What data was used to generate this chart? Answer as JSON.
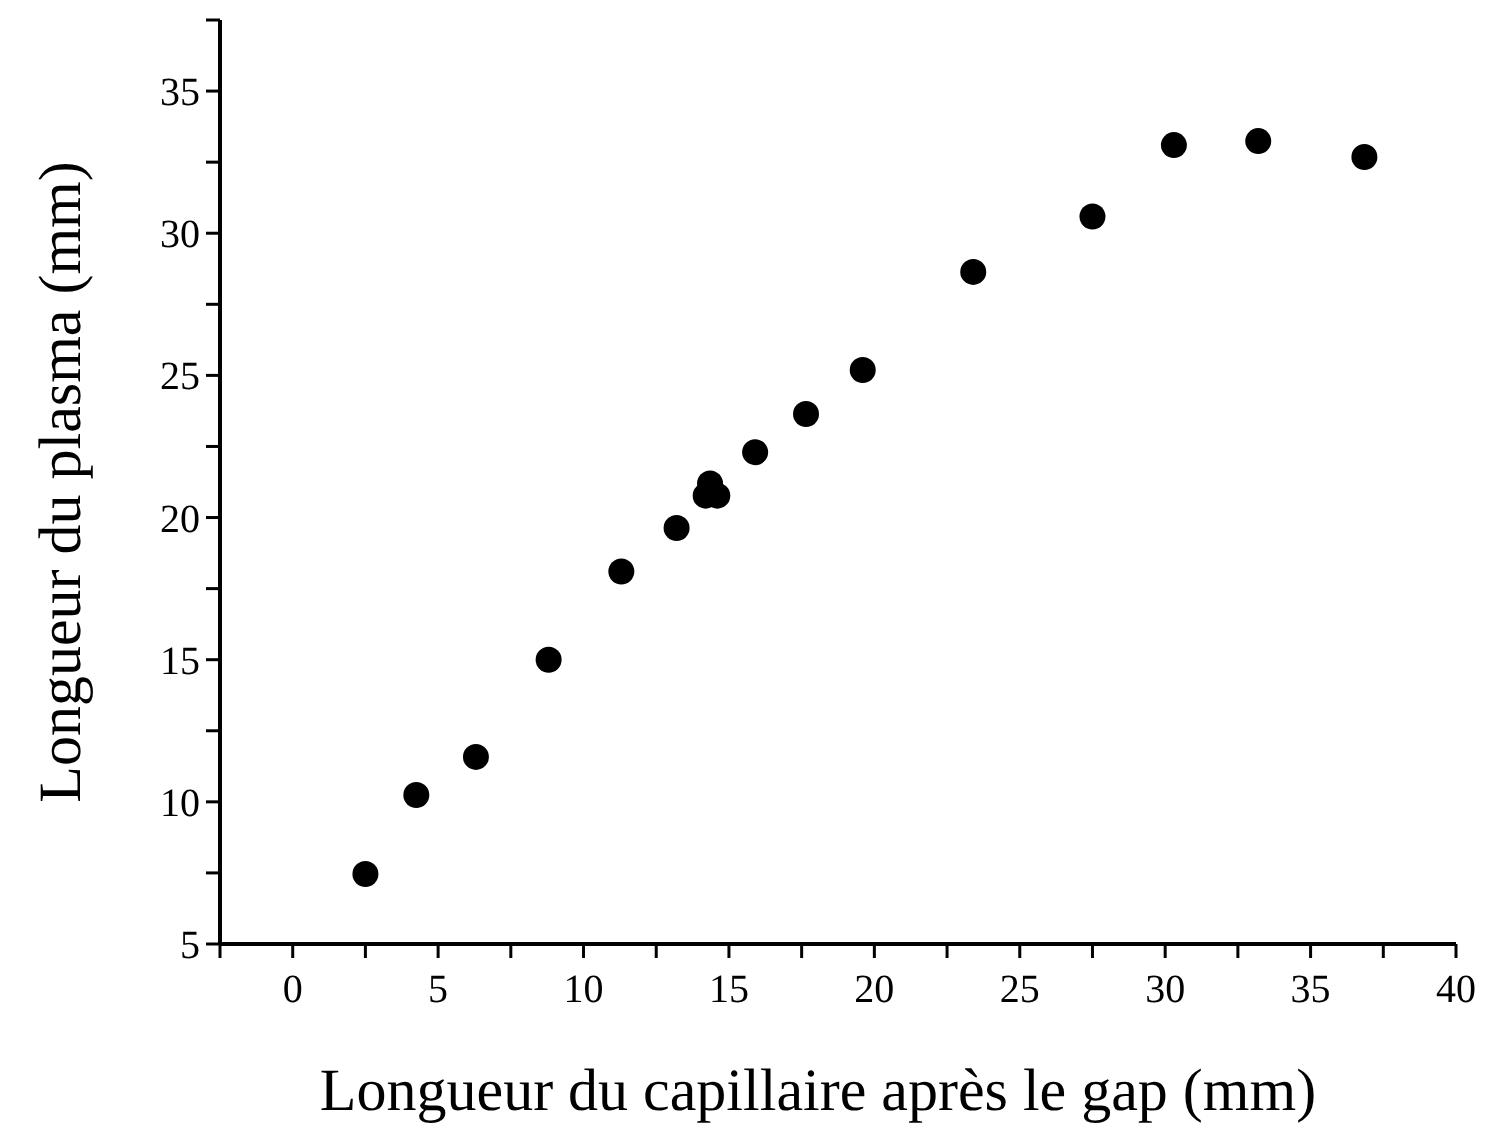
{
  "chart_data": {
    "type": "scatter",
    "xlabel": "Longueur du capillaire après le gap (mm)",
    "ylabel": "Longueur du plasma (mm)",
    "x": [
      2.5,
      4.25,
      6.3,
      8.8,
      11.3,
      13.2,
      14.35,
      14.2,
      14.6,
      15.9,
      17.65,
      19.6,
      23.4,
      27.5,
      30.3,
      33.2,
      36.85
    ],
    "series": [
      {
        "color": "#000000",
        "values": [
          7.46,
          10.24,
          11.58,
          15.0,
          18.1,
          19.63,
          21.2,
          20.77,
          20.77,
          22.3,
          23.64,
          25.19,
          28.64,
          30.59,
          33.1,
          33.24,
          32.68
        ]
      }
    ],
    "marker": "circle",
    "grid": false,
    "xlim": [
      -2.5,
      40
    ],
    "xticks": [
      {
        "value": -2.5,
        "label": null
      },
      0,
      {
        "value": 2.5,
        "label": null
      },
      5,
      {
        "value": 7.5,
        "label": null
      },
      10,
      {
        "value": 12.5,
        "label": null
      },
      15,
      {
        "value": 17.5,
        "label": null
      },
      20,
      {
        "value": 22.5,
        "label": null
      },
      25,
      {
        "value": 27.5,
        "label": null
      },
      30,
      {
        "value": 32.5,
        "label": null
      },
      35,
      {
        "value": 37.5,
        "label": null
      },
      40
    ],
    "ylim": [
      5,
      37.5
    ],
    "yticks": [
      5,
      {
        "value": 7.5,
        "label": null
      },
      10,
      {
        "value": 12.5,
        "label": null
      },
      15,
      {
        "value": 17.5,
        "label": null
      },
      20,
      {
        "value": 22.5,
        "label": null
      },
      25,
      {
        "value": 27.5,
        "label": null
      },
      30,
      {
        "value": 32.5,
        "label": null
      },
      35,
      {
        "value": 37.5,
        "label": null
      }
    ]
  }
}
